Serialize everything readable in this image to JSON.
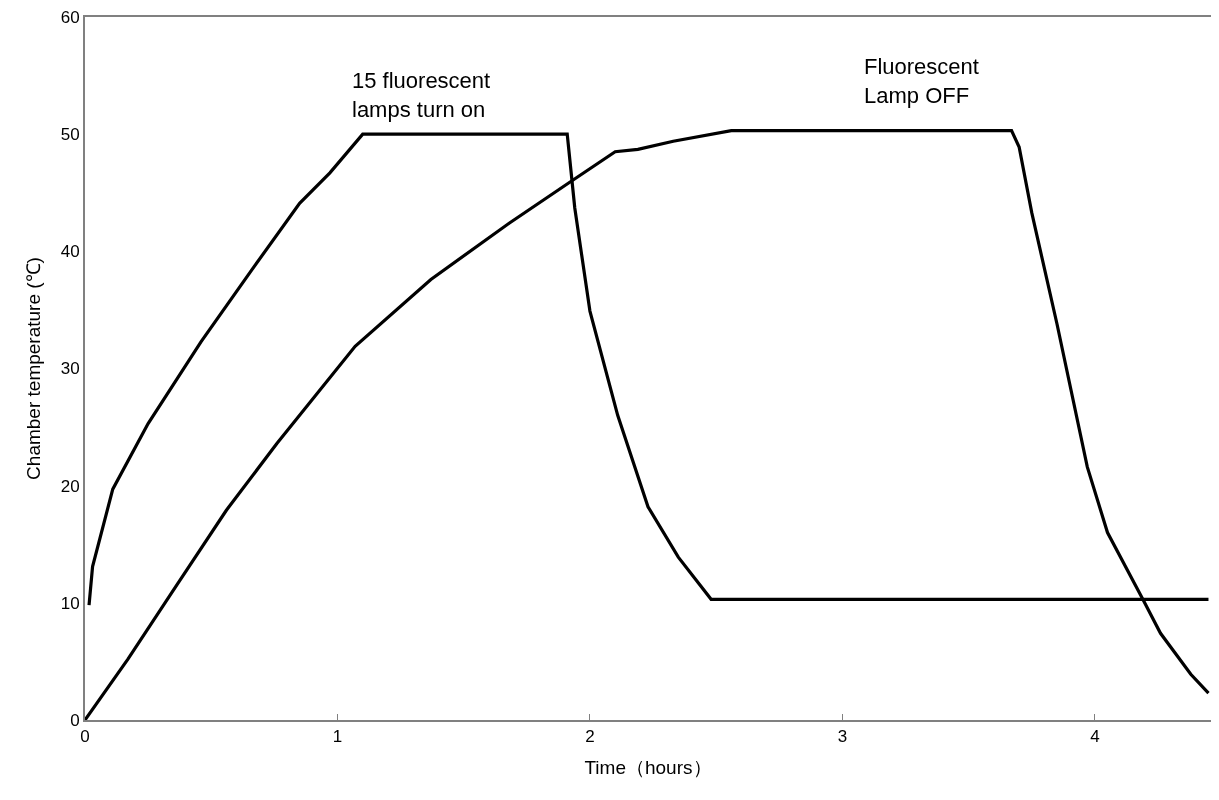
{
  "chart_data": {
    "type": "line",
    "xlabel": "Time（hours）",
    "ylabel": "Chamber temperature (℃)",
    "annotations": [
      "15 fluorescent\nlamps turn on",
      "Fluorescent\nLamp OFF"
    ],
    "series": [
      {
        "color": "#000000",
        "x": [
          0.016,
          0.03,
          0.11,
          0.25,
          0.46,
          0.66,
          0.85,
          0.97,
          1.1,
          1.91,
          1.94,
          2.0,
          2.11,
          2.23,
          2.35,
          2.48,
          4.45
        ],
        "values": [
          9.8,
          13.1,
          19.7,
          25.3,
          32.3,
          38.4,
          44.1,
          46.7,
          50,
          50,
          43.7,
          34.9,
          26,
          18.2,
          13.9,
          10.3,
          10.3
        ]
      },
      {
        "color": "#000000",
        "x": [
          0,
          0.17,
          0.36,
          0.56,
          0.76,
          1.07,
          1.37,
          1.68,
          1.92,
          2.1,
          2.19,
          2.33,
          2.56,
          3.67,
          3.7,
          3.75,
          3.85,
          3.97,
          4.05,
          4.19,
          4.26,
          4.38,
          4.45
        ],
        "values": [
          0,
          5.2,
          11.4,
          17.9,
          23.6,
          31.9,
          37.6,
          42.4,
          45.9,
          48.5,
          48.7,
          49.4,
          50.3,
          50.3,
          48.9,
          43.3,
          33.8,
          21.6,
          16,
          10.3,
          7.4,
          3.9,
          2.3
        ]
      }
    ],
    "xlim": [
      0,
      4.46
    ],
    "xticks": [
      0,
      1,
      2,
      3,
      4
    ],
    "ylim": [
      0,
      60
    ],
    "yticks": [
      0,
      10,
      20,
      30,
      40,
      50,
      60
    ],
    "marker": "none",
    "line_style": "solid"
  }
}
